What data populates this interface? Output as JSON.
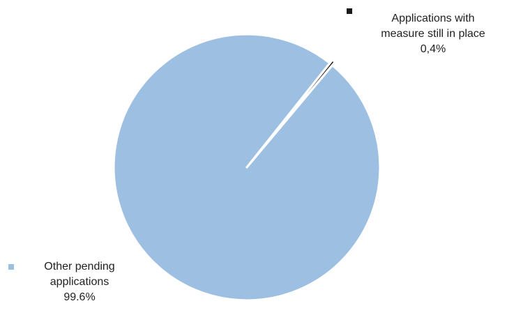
{
  "chart_data": {
    "type": "pie",
    "series": [
      {
        "values": [
          0.4,
          99.6
        ],
        "categories": [
          "Applications with measure still in place",
          "Other pending applications"
        ]
      }
    ],
    "slices": [
      {
        "label_lines": [
          "Applications with",
          "measure still in place"
        ],
        "value": 0.4,
        "value_label": "0,4%",
        "color": "#1a1a1a"
      },
      {
        "label_lines": [
          "Other pending",
          "applications"
        ],
        "value": 99.6,
        "value_label": "99.6%",
        "color": "#9dbfe1"
      }
    ],
    "legend": "labels-beside-slices",
    "title": ""
  }
}
